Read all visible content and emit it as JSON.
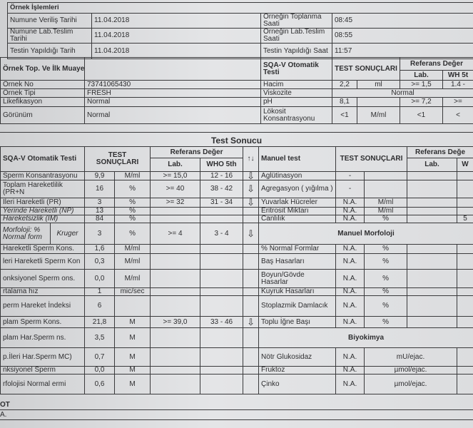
{
  "sample_processing": {
    "title": "Örnek İşlemleri",
    "rows": [
      {
        "label": "Numune Veriliş Tarihi",
        "value": "11.04.2018",
        "label2": "Örneğin Toplanma Saati",
        "value2": "08:45"
      },
      {
        "label": "Numune Lab.Teslim Tarihi",
        "value": "11.04.2018",
        "label2": "Örneğin Lab.Teslim Saati",
        "value2": "08:55"
      },
      {
        "label": "Testin Yapıldığı Tarih",
        "value": "11.04.2018",
        "label2": "Testin Yapıldığı Saat",
        "value2": "11:57"
      }
    ]
  },
  "initial_exam": {
    "title": "Örnek Top. Ve İlk Muayene",
    "sqa_title": "SQA-V Otomatik Testi",
    "results_header": "TEST SONUÇLARI",
    "ref_header": "Referans Değer",
    "lab_header": "Lab.",
    "who_header": "WH 5t",
    "rows": [
      {
        "label": "Örnek No",
        "value": "73741065430"
      },
      {
        "label": "Örnek Tipi",
        "value": "FRESH"
      },
      {
        "label": "Likefikasyon",
        "value": "Normal"
      },
      {
        "label": "Görünüm",
        "value": "Normal"
      }
    ],
    "sqa_rows": [
      {
        "name": "Hacim",
        "value": "2,2",
        "unit": "ml",
        "lab": ">= 1,5",
        "who": "1.4 -"
      },
      {
        "name": "Viskozite",
        "merged": "Normal"
      },
      {
        "name": "pH",
        "value": "8,1",
        "unit": "",
        "lab": ">= 7,2",
        "who": ">="
      },
      {
        "name": "Lökosit Konsantrasyonu",
        "value": "<1",
        "unit": "M/ml",
        "lab": "<1",
        "who": "<"
      }
    ]
  },
  "test_result": {
    "title": "Test Sonucu",
    "headers": {
      "sqa": "SQA-V Otomatik Testi",
      "results": "TEST SONUÇLARI",
      "ref": "Referans Değer",
      "lab": "Lab.",
      "who": "WHO 5th",
      "arrow": "↑↓",
      "manual": "Manuel  test",
      "m_results": "TEST SONUÇLARI",
      "m_ref": "Referans Değe",
      "m_lab": "Lab.",
      "m_who": "W"
    },
    "rows": [
      {
        "h": 12,
        "left": {
          "name": "Sperm Konsantrasyonu",
          "value": "9,9",
          "unit": "M/ml",
          "lab": ">= 15,0",
          "who": "12 - 16",
          "arrow": "down"
        },
        "right": {
          "type": "m",
          "name": "Aglütinasyon",
          "value": "-",
          "unit": "",
          "lab": "",
          "who": ""
        }
      },
      {
        "h": 25,
        "left": {
          "name": "Toplam Hareketlilik (PR+N",
          "value": "16",
          "unit": "%",
          "lab": ">= 40",
          "who": "38 - 42",
          "arrow": "down"
        },
        "right": {
          "type": "m",
          "name": "Agregasyon ( yığılma )",
          "value": "-",
          "unit": "",
          "lab": "",
          "who": ""
        }
      },
      {
        "h": 13,
        "left": {
          "name": "İleri Hareketli (PR)",
          "value": "3",
          "unit": "%",
          "lab": ">= 32",
          "who": "31 - 34",
          "arrow": "down"
        },
        "right": {
          "type": "m",
          "name": "Yuvarlak Hücreler",
          "value": "N.A.",
          "unit": "M/ml",
          "lab": "",
          "who": ""
        }
      },
      {
        "h": 8,
        "left": {
          "name": "Yerinde Hareketli (NP)",
          "italic": true,
          "value": "13",
          "unit": "%",
          "lab": "",
          "who": "",
          "arrow": ""
        },
        "right": {
          "type": "m",
          "name": "Eritrosit Miktarı",
          "value": "N.A.",
          "unit": "M/ml",
          "lab": "",
          "who": ""
        }
      },
      {
        "h": 9,
        "left": {
          "name": "Hareketsizlik (IM)",
          "italic": true,
          "value": "84",
          "unit": "%",
          "lab": "",
          "who": "",
          "arrow": ""
        },
        "right": {
          "type": "m",
          "name": "Canlılık",
          "value": "N.A.",
          "unit": "%",
          "lab": "",
          "who": "5"
        }
      },
      {
        "h": 30,
        "left": {
          "name": "Morfoloji: % Normal form",
          "name2": "Kruger",
          "italic": true,
          "value": "3",
          "unit": "%",
          "lab": ">= 4",
          "who": "3 - 4",
          "arrow": "down"
        },
        "right": {
          "type": "header",
          "name": "Manuel Morfoloji"
        }
      },
      {
        "h": 13,
        "left": {
          "name": "Hareketli Sperm Kons.",
          "value": "1,6",
          "unit": "M/ml",
          "lab": "",
          "who": "",
          "arrow": ""
        },
        "right": {
          "type": "m",
          "name": "% Normal Formlar",
          "value": "N.A.",
          "unit": "%",
          "lab": "",
          "who": ""
        }
      },
      {
        "h": 22,
        "left": {
          "name": "leri Hareketli Sperm Kon",
          "value": "0,3",
          "unit": "M/ml",
          "lab": "",
          "who": "",
          "arrow": ""
        },
        "right": {
          "type": "m",
          "name": "Baş Hasarları",
          "value": "N.A.",
          "unit": "%",
          "lab": "",
          "who": ""
        }
      },
      {
        "h": 26,
        "left": {
          "name": "onksiyonel Sperm ons.",
          "value": "0,0",
          "unit": "M/ml",
          "lab": "",
          "who": "",
          "arrow": ""
        },
        "right": {
          "type": "m",
          "name": "Boyun/Gövde Hasarlar",
          "value": "N.A.",
          "unit": "%",
          "lab": "",
          "who": ""
        }
      },
      {
        "h": 10,
        "left": {
          "name": "rtalama hız",
          "value": "1",
          "unit": "mic/sec",
          "lab": "",
          "who": "",
          "arrow": ""
        },
        "right": {
          "type": "m",
          "name": "Kuyruk Hasarları",
          "value": "N.A.",
          "unit": "%",
          "lab": "",
          "who": ""
        }
      },
      {
        "h": 29,
        "left": {
          "name": "perm Hareket İndeksi",
          "value": "6",
          "unit": "",
          "lab": "",
          "who": "",
          "arrow": ""
        },
        "right": {
          "type": "m",
          "name": "Stoplazmik Damlacık",
          "value": "N.A.",
          "unit": "%",
          "lab": "",
          "who": ""
        }
      },
      {
        "h": 16,
        "left": {
          "name": "plam Sperm Kons.",
          "value": "21,8",
          "unit": "M",
          "lab": ">= 39,0",
          "who": "33 - 46",
          "arrow": "down"
        },
        "right": {
          "type": "m",
          "name": "Toplu İğne Başı",
          "value": "N.A.",
          "unit": "%",
          "lab": "",
          "who": ""
        }
      },
      {
        "h": 28,
        "left": {
          "name": "plam Har.Sperm ns.",
          "value": "3,5",
          "unit": "M",
          "lab": "",
          "who": "",
          "arrow": ""
        },
        "right": {
          "type": "header",
          "name": "Biyokimya"
        }
      },
      {
        "h": 26,
        "left": {
          "name": "p.İleri Har.Sperm MC)",
          "value": "0,7",
          "unit": "M",
          "lab": "",
          "who": "",
          "arrow": ""
        },
        "right": {
          "type": "bio",
          "name": "Nötr Glukosidaz",
          "value": "N.A.",
          "unit": "mU/ejac."
        }
      },
      {
        "h": 11,
        "left": {
          "name": "nksiyonel Sperm",
          "value": "0,0",
          "unit": "M",
          "lab": "",
          "who": "",
          "arrow": ""
        },
        "right": {
          "type": "bio",
          "name": "Fruktoz",
          "value": "N.A.",
          "unit": "µmol/ejac."
        }
      },
      {
        "h": 28,
        "left": {
          "name": "rfolojisi Normal ermi",
          "value": "0,6",
          "unit": "M",
          "lab": "",
          "who": "",
          "arrow": ""
        },
        "right": {
          "type": "bio",
          "name": "Çinko",
          "value": "N.A.",
          "unit": "µmol/ejac."
        }
      }
    ]
  },
  "notes": {
    "title": "OT",
    "text": "A."
  },
  "icons": {
    "arrow_down": "down-arrow-icon"
  }
}
